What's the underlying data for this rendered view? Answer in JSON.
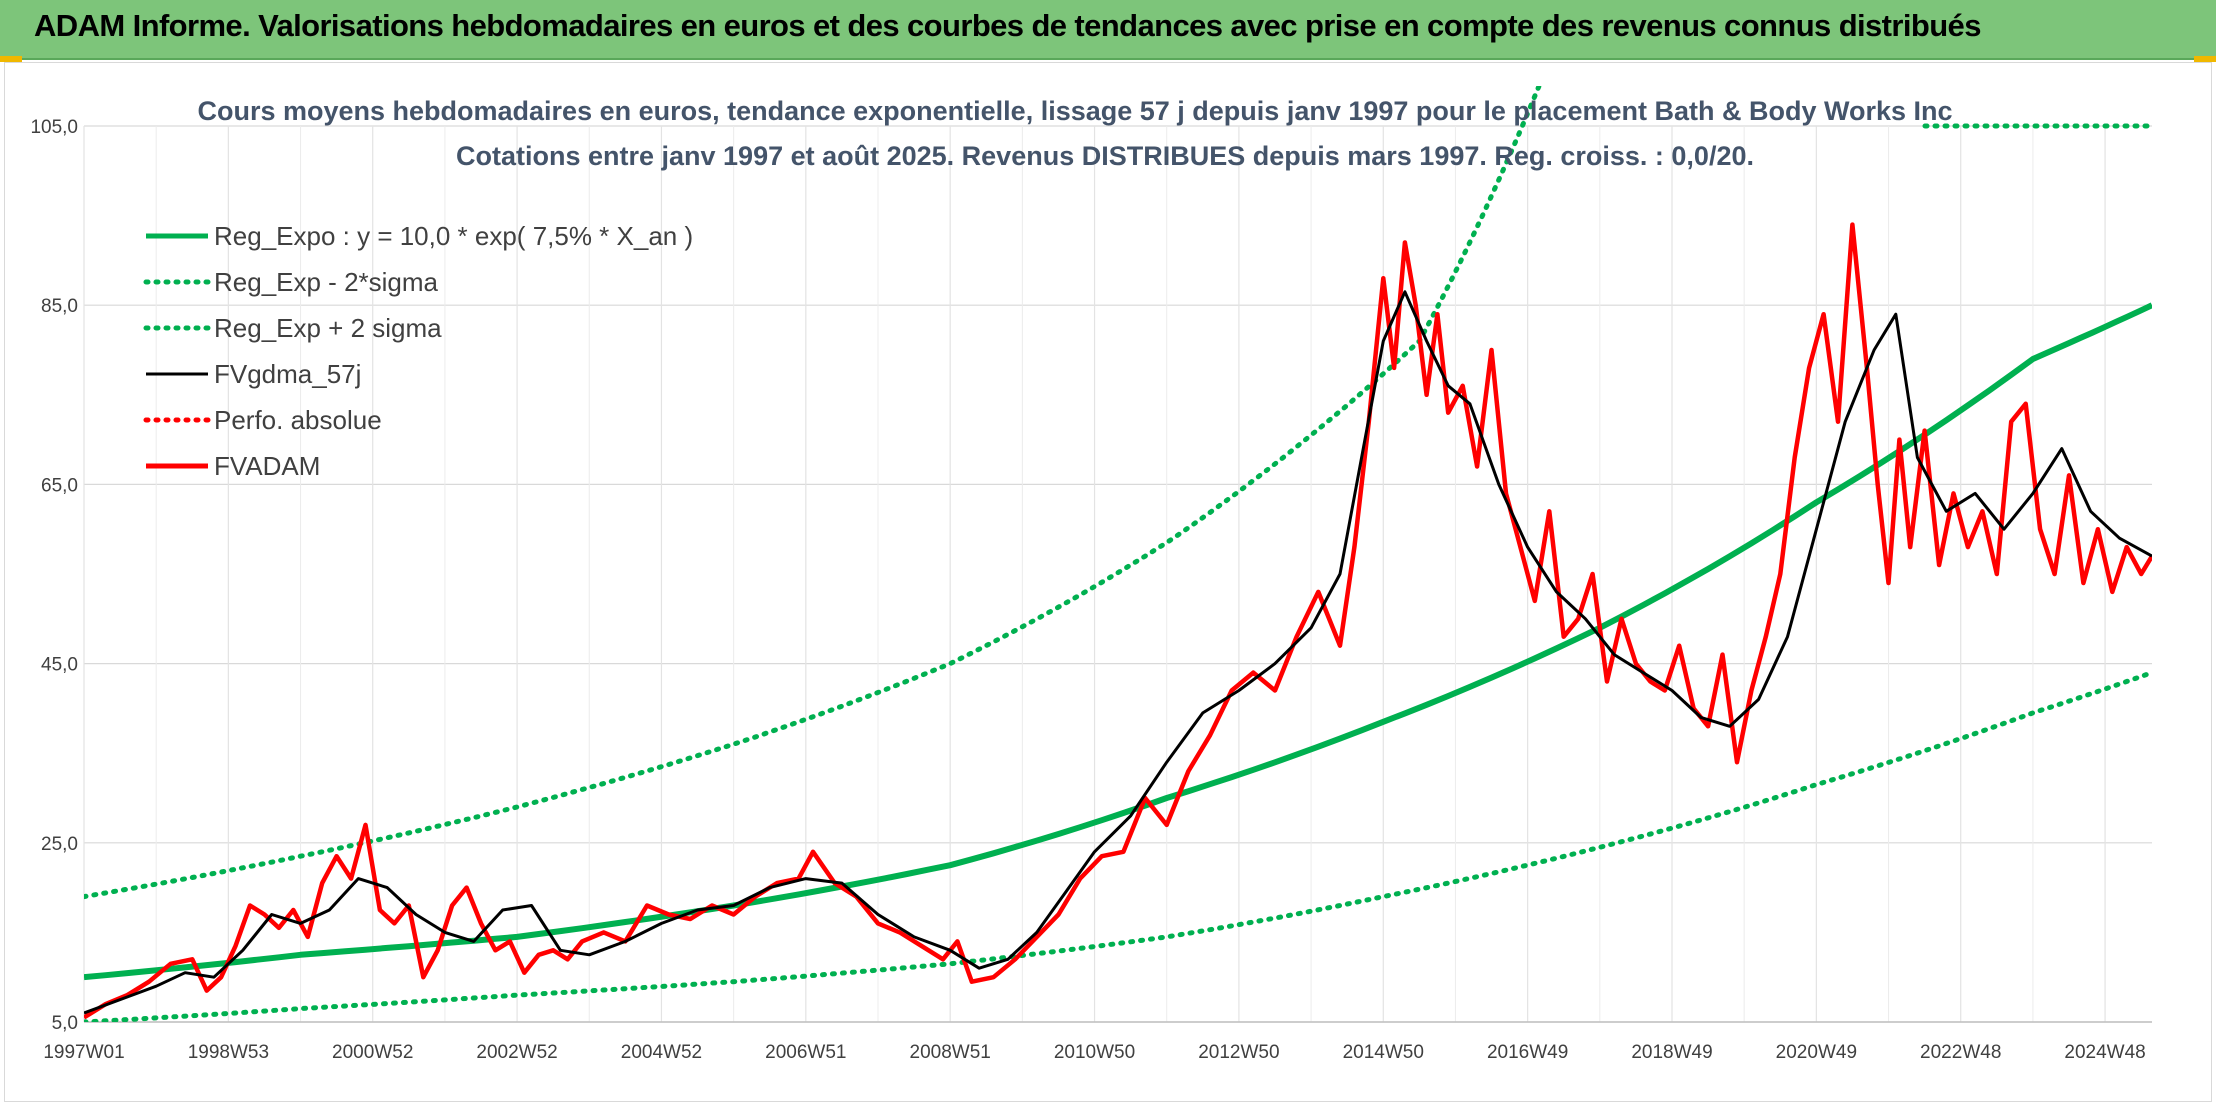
{
  "header": {
    "title": "ADAM Informe. Valorisations hebdomadaires en euros et des courbes de tendances avec prise en compte des revenus connus distribués"
  },
  "colors": {
    "banner": "#7dc57a",
    "trend": "#00b050",
    "price": "#ff0000",
    "average": "#000000",
    "perfo": "#ff0000",
    "title_text": "#44546a"
  },
  "chart_data": {
    "type": "line",
    "title": "Cours moyens hebdomadaires en euros, tendance exponentielle, lissage 57 j depuis janv 1997 pour le placement Bath & Body Works Inc",
    "subtitle": "Cotations entre janv 1997 et août 2025. Revenus DISTRIBUES depuis mars 1997. Reg. croiss. : 0,0/20.",
    "xlabel": "",
    "ylabel": "",
    "ylim": [
      5,
      105
    ],
    "xlim": [
      1997.0,
      2025.65
    ],
    "yticks": [
      "5,0",
      "25,0",
      "45,0",
      "65,0",
      "85,0",
      "105,0"
    ],
    "xticks": [
      {
        "label": "1997W01",
        "x": 1997.0
      },
      {
        "label": "1998W53",
        "x": 1999.0
      },
      {
        "label": "2000W52",
        "x": 2001.0
      },
      {
        "label": "2002W52",
        "x": 2003.0
      },
      {
        "label": "2004W52",
        "x": 2005.0
      },
      {
        "label": "2006W51",
        "x": 2007.0
      },
      {
        "label": "2008W51",
        "x": 2009.0
      },
      {
        "label": "2010W50",
        "x": 2011.0
      },
      {
        "label": "2012W50",
        "x": 2013.0
      },
      {
        "label": "2014W50",
        "x": 2015.0
      },
      {
        "label": "2016W49",
        "x": 2017.0
      },
      {
        "label": "2018W49",
        "x": 2019.0
      },
      {
        "label": "2020W49",
        "x": 2021.0
      },
      {
        "label": "2022W48",
        "x": 2023.0
      },
      {
        "label": "2024W48",
        "x": 2025.0
      }
    ],
    "grid": true,
    "legend_position": "top-left",
    "series": [
      {
        "name": "Reg_Expo : y = 10,0 * exp( 7,5% *  X_an )",
        "style": "solid-thick",
        "color": "#00b050",
        "x": [
          1997.0,
          2000.0,
          2003.0,
          2006.0,
          2009.0,
          2012.0,
          2015.0,
          2018.0,
          2021.0,
          2024.0,
          2025.65
        ],
        "values": [
          10.0,
          12.5,
          14.5,
          18.0,
          22.5,
          30.0,
          38.5,
          49.0,
          63.0,
          79.0,
          85.0
        ]
      },
      {
        "name": "Reg_Exp - 2*sigma",
        "style": "dotted",
        "color": "#00b050",
        "x": [
          1997.0,
          2000.0,
          2003.0,
          2006.0,
          2009.0,
          2012.0,
          2015.0,
          2018.0,
          2021.0,
          2024.0,
          2025.65
        ],
        "values": [
          5.0,
          6.5,
          8.0,
          9.5,
          11.5,
          14.5,
          19.0,
          24.5,
          31.5,
          39.5,
          44.0
        ]
      },
      {
        "name": "Reg_Exp + 2 sigma",
        "style": "dotted",
        "color": "#00b050",
        "x": [
          1997.0,
          2000.0,
          2003.0,
          2006.0,
          2009.0,
          2012.0,
          2014.0,
          2015.5,
          2016.6
        ],
        "values": [
          19.0,
          23.5,
          29.0,
          36.0,
          45.0,
          58.5,
          70.5,
          81.0,
          99.0
        ],
        "note_extension": "line continues above the plot area at the top right"
      },
      {
        "name": "FVgdma_57j",
        "style": "solid",
        "color": "#000000",
        "x": [
          1997.0,
          1997.5,
          1998.0,
          1998.4,
          1998.8,
          1999.2,
          1999.6,
          2000.0,
          2000.4,
          2000.8,
          2001.2,
          2001.6,
          2002.0,
          2002.4,
          2002.8,
          2003.2,
          2003.6,
          2004.0,
          2004.5,
          2005.0,
          2005.5,
          2006.0,
          2006.5,
          2007.0,
          2007.5,
          2008.0,
          2008.5,
          2009.0,
          2009.4,
          2009.8,
          2010.2,
          2010.6,
          2011.0,
          2011.5,
          2012.0,
          2012.5,
          2013.0,
          2013.5,
          2014.0,
          2014.4,
          2014.7,
          2015.0,
          2015.3,
          2015.6,
          2015.9,
          2016.2,
          2016.6,
          2017.0,
          2017.4,
          2017.8,
          2018.2,
          2018.6,
          2019.0,
          2019.4,
          2019.8,
          2020.2,
          2020.6,
          2021.0,
          2021.4,
          2021.8,
          2022.1,
          2022.4,
          2022.8,
          2023.2,
          2023.6,
          2024.0,
          2024.4,
          2024.8,
          2025.2,
          2025.65
        ],
        "values": [
          6.0,
          7.5,
          9.0,
          10.5,
          10.0,
          13.0,
          17.0,
          16.0,
          17.5,
          21.0,
          20.0,
          17.0,
          15.0,
          14.0,
          17.5,
          18.0,
          13.0,
          12.5,
          14.0,
          16.0,
          17.5,
          18.0,
          20.0,
          21.0,
          20.5,
          17.0,
          14.5,
          13.0,
          11.0,
          12.0,
          15.0,
          19.5,
          24.0,
          28.0,
          34.0,
          39.5,
          42.0,
          45.0,
          49.0,
          55.0,
          68.0,
          81.0,
          86.5,
          81.0,
          76.0,
          74.0,
          65.0,
          58.0,
          53.0,
          50.0,
          46.0,
          44.0,
          42.0,
          39.0,
          38.0,
          41.0,
          48.0,
          60.0,
          72.0,
          80.0,
          84.0,
          68.0,
          62.0,
          64.0,
          60.0,
          64.0,
          69.0,
          62.0,
          59.0,
          57.0
        ]
      },
      {
        "name": "Perfo. absolue",
        "style": "dotted",
        "color": "#ff0000",
        "x": [],
        "values": []
      },
      {
        "name": "FVADAM",
        "style": "solid-thick",
        "color": "#ff0000",
        "x": [
          1997.0,
          1997.3,
          1997.6,
          1997.9,
          1998.2,
          1998.5,
          1998.7,
          1998.9,
          1999.1,
          1999.3,
          1999.5,
          1999.7,
          1999.9,
          2000.1,
          2000.3,
          2000.5,
          2000.7,
          2000.9,
          2001.1,
          2001.3,
          2001.5,
          2001.7,
          2001.9,
          2002.1,
          2002.3,
          2002.5,
          2002.7,
          2002.9,
          2003.1,
          2003.3,
          2003.5,
          2003.7,
          2003.9,
          2004.2,
          2004.5,
          2004.8,
          2005.1,
          2005.4,
          2005.7,
          2006.0,
          2006.3,
          2006.6,
          2006.9,
          2007.1,
          2007.4,
          2007.7,
          2008.0,
          2008.3,
          2008.6,
          2008.9,
          2009.1,
          2009.3,
          2009.6,
          2009.9,
          2010.2,
          2010.5,
          2010.8,
          2011.1,
          2011.4,
          2011.7,
          2012.0,
          2012.3,
          2012.6,
          2012.9,
          2013.2,
          2013.5,
          2013.8,
          2014.1,
          2014.4,
          2014.6,
          2014.8,
          2015.0,
          2015.15,
          2015.3,
          2015.45,
          2015.6,
          2015.75,
          2015.9,
          2016.1,
          2016.3,
          2016.5,
          2016.7,
          2016.9,
          2017.1,
          2017.3,
          2017.5,
          2017.7,
          2017.9,
          2018.1,
          2018.3,
          2018.5,
          2018.7,
          2018.9,
          2019.1,
          2019.3,
          2019.5,
          2019.7,
          2019.9,
          2020.1,
          2020.3,
          2020.5,
          2020.7,
          2020.9,
          2021.1,
          2021.3,
          2021.5,
          2021.7,
          2021.85,
          2022.0,
          2022.15,
          2022.3,
          2022.5,
          2022.7,
          2022.9,
          2023.1,
          2023.3,
          2023.5,
          2023.7,
          2023.9,
          2024.1,
          2024.3,
          2024.5,
          2024.7,
          2024.9,
          2025.1,
          2025.3,
          2025.5,
          2025.65
        ],
        "values": [
          5.5,
          7.0,
          8.0,
          9.5,
          11.5,
          12.0,
          8.5,
          10.0,
          13.5,
          18.0,
          17.0,
          15.5,
          17.5,
          14.5,
          20.5,
          23.5,
          21.0,
          27.0,
          17.5,
          16.0,
          18.0,
          10.0,
          13.0,
          18.0,
          20.0,
          16.0,
          13.0,
          14.0,
          10.5,
          12.5,
          13.0,
          12.0,
          14.0,
          15.0,
          14.0,
          18.0,
          17.0,
          16.5,
          18.0,
          17.0,
          19.0,
          20.5,
          21.0,
          24.0,
          20.5,
          19.0,
          16.0,
          15.0,
          13.5,
          12.0,
          14.0,
          9.5,
          10.0,
          12.0,
          14.5,
          17.0,
          21.0,
          23.5,
          24.0,
          30.0,
          27.0,
          33.0,
          37.0,
          42.0,
          44.0,
          42.0,
          48.0,
          53.0,
          47.0,
          58.0,
          72.0,
          88.0,
          78.0,
          92.0,
          85.0,
          75.0,
          84.0,
          73.0,
          76.0,
          67.0,
          80.0,
          64.0,
          58.0,
          52.0,
          62.0,
          48.0,
          50.0,
          55.0,
          43.0,
          50.0,
          45.0,
          43.0,
          42.0,
          47.0,
          40.0,
          38.0,
          46.0,
          34.0,
          42.0,
          48.0,
          55.0,
          68.0,
          78.0,
          84.0,
          72.0,
          94.0,
          78.0,
          65.0,
          54.0,
          70.0,
          58.0,
          71.0,
          56.0,
          64.0,
          58.0,
          62.0,
          55.0,
          72.0,
          74.0,
          60.0,
          55.0,
          66.0,
          54.0,
          60.0,
          53.0,
          58.0,
          55.0,
          57.0
        ]
      }
    ]
  }
}
